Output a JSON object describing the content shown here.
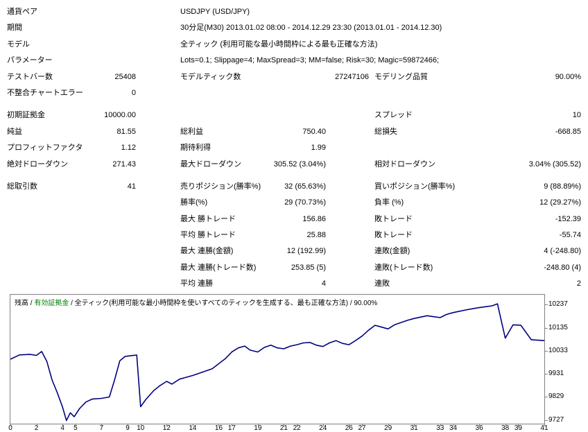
{
  "report": {
    "info": [
      {
        "label": "通貨ペア",
        "value": "USDJPY (USD/JPY)"
      },
      {
        "label": "期間",
        "value": "30分足(M30) 2013.01.02 08:00 - 2014.12.29 23:30 (2013.01.01 - 2014.12.30)"
      },
      {
        "label": "モデル",
        "value": "全ティック (利用可能な最小時間枠による最も正確な方法)"
      },
      {
        "label": "パラメーター",
        "value": "Lots=0.1; Slippage=4; MaxSpread=3; MM=false; Risk=30; Magic=59872466;"
      }
    ],
    "stats": [
      {
        "l1": "テストバー数",
        "v1": "25408",
        "l2": "モデルティック数",
        "v2": "27247106",
        "l3": "モデリング品質",
        "v3": "90.00%"
      },
      {
        "l1": "不整合チャートエラー",
        "v1": "0",
        "l2": "",
        "v2": "",
        "l3": "",
        "v3": ""
      },
      {
        "l1": "初期証拠金",
        "v1": "10000.00",
        "l2": "",
        "v2": "",
        "l3": "スプレッド",
        "v3": "10"
      },
      {
        "l1": "純益",
        "v1": "81.55",
        "l2": "総利益",
        "v2": "750.40",
        "l3": "総損失",
        "v3": "-668.85"
      },
      {
        "l1": "プロフィットファクタ",
        "v1": "1.12",
        "l2": "期待利得",
        "v2": "1.99",
        "l3": "",
        "v3": ""
      },
      {
        "l1": "絶対ドローダウン",
        "v1": "271.43",
        "l2": "最大ドローダウン",
        "v2": "305.52 (3.04%)",
        "l3": "相対ドローダウン",
        "v3": "3.04% (305.52)"
      },
      {
        "l1": "総取引数",
        "v1": "41",
        "l2": "売りポジション(勝率%)",
        "v2": "32 (65.63%)",
        "l3": "買いポジション(勝率%)",
        "v3": "9 (88.89%)"
      },
      {
        "l1": "",
        "v1": "",
        "l2": "勝率(%)",
        "v2": "29 (70.73%)",
        "l3": "負率 (%)",
        "v3": "12 (29.27%)"
      },
      {
        "l1": "",
        "v1": "",
        "l2": "最大 勝トレード",
        "v2": "156.86",
        "l3": "敗トレード",
        "v3": "-152.39"
      },
      {
        "l1": "",
        "v1": "",
        "l2": "平均 勝トレード",
        "v2": "25.88",
        "l3": "敗トレード",
        "v3": "-55.74"
      },
      {
        "l1": "",
        "v1": "",
        "l2": "最大 連勝(金額)",
        "v2": "12 (192.99)",
        "l3": "連敗(金額)",
        "v3": "4 (-248.80)"
      },
      {
        "l1": "",
        "v1": "",
        "l2": "最大 連勝(トレード数)",
        "v2": "253.85 (5)",
        "l3": "連敗(トレード数)",
        "v3": "-248.80 (4)"
      },
      {
        "l1": "",
        "v1": "",
        "l2": "平均 連勝",
        "v2": "4",
        "l3": "連敗",
        "v3": "2"
      }
    ]
  },
  "chart_data": {
    "type": "line",
    "title": "残高 / 有効証拠金 / 全ティック(利用可能な最小時間枠を使いすべてのティックを生成する、最も正確な方法) / 90.00%",
    "legend": {
      "balance": "残高",
      "sep": " / ",
      "equity": "有効証拠金",
      "model": " / 全ティック(利用可能な最小時間枠を使いすべてのティックを生成する、最も正確な方法) / 90.00%"
    },
    "xlabel": "",
    "ylabel": "",
    "xlim": [
      0,
      41
    ],
    "ylim": [
      9715,
      10285
    ],
    "x_ticks": [
      0,
      2,
      4,
      5,
      7,
      9,
      10,
      12,
      14,
      16,
      17,
      19,
      21,
      22,
      24,
      26,
      27,
      29,
      31,
      33,
      34,
      36,
      38,
      39,
      41
    ],
    "y_ticks": [
      10237,
      10135,
      10033,
      9931,
      9829,
      9727
    ],
    "grid": false,
    "line_color": "#000080",
    "equity_color": "#008000",
    "series": [
      {
        "name": "残高",
        "points": [
          [
            0,
            10000
          ],
          [
            0.7,
            10019
          ],
          [
            1.5,
            10021
          ],
          [
            2,
            10017
          ],
          [
            2.4,
            10034
          ],
          [
            2.8,
            9990
          ],
          [
            3.2,
            9908
          ],
          [
            3.6,
            9852
          ],
          [
            4,
            9789
          ],
          [
            4.3,
            9729
          ],
          [
            4.6,
            9763
          ],
          [
            4.9,
            9746
          ],
          [
            5.3,
            9781
          ],
          [
            5.8,
            9811
          ],
          [
            6.3,
            9824
          ],
          [
            7,
            9827
          ],
          [
            7.6,
            9833
          ],
          [
            8,
            9908
          ],
          [
            8.4,
            9993
          ],
          [
            8.8,
            10012
          ],
          [
            9.3,
            10016
          ],
          [
            9.7,
            10018
          ],
          [
            10,
            9790
          ],
          [
            10.4,
            9822
          ],
          [
            11,
            9861
          ],
          [
            11.5,
            9884
          ],
          [
            12,
            9902
          ],
          [
            12.4,
            9890
          ],
          [
            13,
            9912
          ],
          [
            13.5,
            9920
          ],
          [
            14,
            9928
          ],
          [
            14.5,
            9938
          ],
          [
            15,
            9948
          ],
          [
            15.5,
            9958
          ],
          [
            16,
            9980
          ],
          [
            16.5,
            10002
          ],
          [
            17,
            10032
          ],
          [
            17.5,
            10050
          ],
          [
            18,
            10058
          ],
          [
            18.4,
            10040
          ],
          [
            19,
            10032
          ],
          [
            19.5,
            10052
          ],
          [
            20,
            10062
          ],
          [
            20.5,
            10050
          ],
          [
            21,
            10046
          ],
          [
            21.5,
            10058
          ],
          [
            22,
            10064
          ],
          [
            22.5,
            10072
          ],
          [
            23,
            10074
          ],
          [
            23.5,
            10062
          ],
          [
            24,
            10056
          ],
          [
            24.5,
            10072
          ],
          [
            25,
            10082
          ],
          [
            25.5,
            10070
          ],
          [
            26,
            10064
          ],
          [
            26.5,
            10082
          ],
          [
            27,
            10102
          ],
          [
            27.5,
            10128
          ],
          [
            28,
            10150
          ],
          [
            28.5,
            10142
          ],
          [
            29,
            10134
          ],
          [
            29.5,
            10152
          ],
          [
            30,
            10162
          ],
          [
            30.5,
            10172
          ],
          [
            31,
            10180
          ],
          [
            31.5,
            10186
          ],
          [
            32,
            10192
          ],
          [
            32.5,
            10188
          ],
          [
            33,
            10184
          ],
          [
            33.5,
            10198
          ],
          [
            34,
            10206
          ],
          [
            34.5,
            10212
          ],
          [
            35,
            10218
          ],
          [
            35.5,
            10223
          ],
          [
            36,
            10228
          ],
          [
            36.5,
            10232
          ],
          [
            37,
            10236
          ],
          [
            37.4,
            10245
          ],
          [
            38,
            10093
          ],
          [
            38.6,
            10152
          ],
          [
            39.2,
            10150
          ],
          [
            40,
            10086
          ],
          [
            41,
            10082
          ]
        ]
      }
    ]
  }
}
